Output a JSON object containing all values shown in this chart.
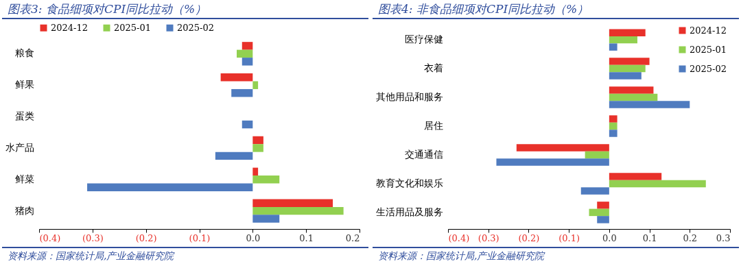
{
  "chart_data": [
    {
      "type": "bar",
      "orientation": "horizontal",
      "title": "图表3:  食品细项对CPI同比拉动（%）",
      "categories": [
        "粮食",
        "鲜果",
        "蛋类",
        "水产品",
        "鲜菜",
        "猪肉"
      ],
      "series": [
        {
          "name": "2024-12",
          "color": "#e8312a",
          "values": [
            -0.02,
            -0.06,
            0,
            0.02,
            0.01,
            0.15
          ]
        },
        {
          "name": "2025-01",
          "color": "#92d050",
          "values": [
            -0.03,
            0.01,
            0,
            0.02,
            0.05,
            0.17
          ]
        },
        {
          "name": "2025-02",
          "color": "#4f7bbf",
          "values": [
            -0.02,
            -0.04,
            -0.02,
            -0.07,
            -0.31,
            0.05
          ]
        }
      ],
      "xlim": [
        -0.4,
        0.2
      ],
      "xticks": [
        {
          "value": -0.4,
          "label": "(0.4)"
        },
        {
          "value": -0.3,
          "label": "(0.3)"
        },
        {
          "value": -0.2,
          "label": "(0.2)"
        },
        {
          "value": -0.1,
          "label": "(0.1)"
        },
        {
          "value": 0,
          "label": "0.0"
        },
        0.1,
        0.2
      ],
      "legend": "top",
      "grid": false,
      "annotations": [
        "资料来源：国家统计局,产业金融研究院"
      ]
    },
    {
      "type": "bar",
      "orientation": "horizontal",
      "title": "图表4:  非食品细项对CPI同比拉动（%）",
      "categories": [
        "医疗保健",
        "衣着",
        "其他用品和服务",
        "居住",
        "交通通信",
        "教育文化和娱乐",
        "生活用品及服务"
      ],
      "series": [
        {
          "name": "2024-12",
          "color": "#e8312a",
          "values": [
            0.09,
            0.1,
            0.11,
            0.02,
            -0.23,
            0.13,
            -0.03
          ]
        },
        {
          "name": "2025-01",
          "color": "#92d050",
          "values": [
            0.07,
            0.09,
            0.12,
            0.02,
            -0.06,
            0.24,
            -0.05
          ]
        },
        {
          "name": "2025-02",
          "color": "#4f7bbf",
          "values": [
            0.02,
            0.08,
            0.2,
            0.02,
            -0.28,
            -0.07,
            -0.03
          ]
        }
      ],
      "xlim": [
        -0.4,
        0.3
      ],
      "xticks": [
        {
          "value": -0.4,
          "label": "(0.4)"
        },
        {
          "value": -0.3,
          "label": "(0.3)"
        },
        {
          "value": -0.2,
          "label": "(0.2)"
        },
        {
          "value": -0.1,
          "label": "(0.1)"
        },
        {
          "value": 0,
          "label": "0.0"
        },
        0.1,
        0.2,
        0.3
      ],
      "legend": "top right",
      "grid": false,
      "annotations": [
        "资料来源：国家统计局,产业金融研究院"
      ]
    }
  ]
}
